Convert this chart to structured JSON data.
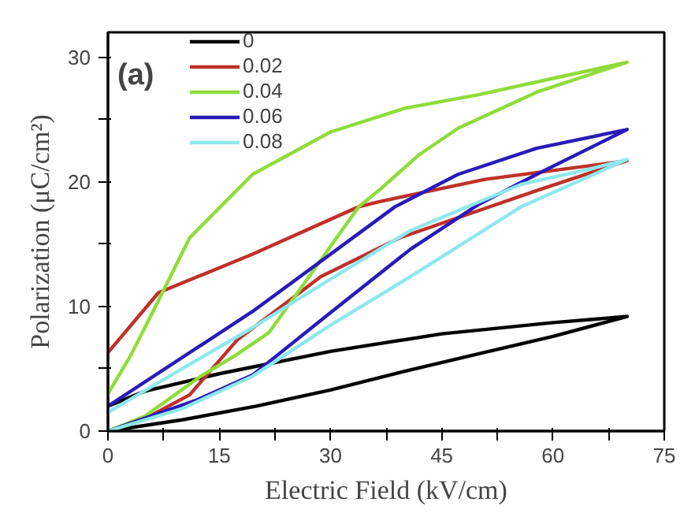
{
  "chart_data": {
    "type": "line",
    "xlabel": "Electric Field (kV/cm)",
    "ylabel": "Polarization (μC/cm²)",
    "annotations": [
      "(a)"
    ],
    "xlim": [
      0,
      75
    ],
    "ylim": [
      0,
      32
    ],
    "xticks": [
      0,
      {
        "value": 7.5,
        "label": null
      },
      15,
      {
        "value": 22.5,
        "label": null
      },
      30,
      {
        "value": 37.5,
        "label": null
      },
      45,
      {
        "value": 52.5,
        "label": null
      },
      60,
      {
        "value": 67.5,
        "label": null
      },
      75
    ],
    "yticks": [
      0,
      {
        "value": 5,
        "label": null
      },
      10,
      {
        "value": 15,
        "label": null
      },
      20,
      {
        "value": 25,
        "label": null
      },
      30
    ],
    "grid": false,
    "legend": "top left",
    "marker": "none",
    "line_style": "solid",
    "series": [
      {
        "name": "0",
        "color": "#000000",
        "x": [
          0,
          10,
          20,
          30,
          40,
          50,
          60,
          70,
          60,
          45,
          30,
          15,
          5,
          0
        ],
        "values": [
          0,
          0.9,
          2.0,
          3.3,
          4.8,
          6.2,
          7.6,
          9.2,
          8.7,
          7.8,
          6.4,
          4.6,
          3.2,
          2.0
        ]
      },
      {
        "name": "0.02",
        "color": "#c0302a",
        "x": [
          0,
          5,
          11,
          17.4,
          28.7,
          39.3,
          57.8,
          70,
          66.3,
          50.8,
          36.5,
          33.8,
          19.5,
          6.8,
          0
        ],
        "values": [
          0,
          1.0,
          2.9,
          7.3,
          12.4,
          15.5,
          19.3,
          21.7,
          21.4,
          20.2,
          18.4,
          18.0,
          14.2,
          11.1,
          6.3
        ]
      },
      {
        "name": "0.04",
        "color": "#8fdc3a",
        "x": [
          0,
          5,
          12.5,
          17,
          21.7,
          27,
          33.8,
          36.5,
          42,
          47.2,
          57.8,
          70,
          60,
          50,
          40,
          30,
          19.5,
          11,
          6,
          3,
          0
        ],
        "values": [
          0,
          1.2,
          4.4,
          6.0,
          7.9,
          12.3,
          18.0,
          19.3,
          22.2,
          24.3,
          27.2,
          29.6,
          28.3,
          27.0,
          25.9,
          24.0,
          20.6,
          15.5,
          9.5,
          6.0,
          3.0
        ]
      },
      {
        "name": "0.06",
        "color": "#2a1ab8",
        "x": [
          0,
          12,
          19.5,
          30,
          40.8,
          50,
          57.8,
          70,
          57.8,
          47.2,
          38.7,
          19.5,
          0
        ],
        "values": [
          0,
          2.5,
          4.5,
          9.5,
          14.6,
          18.2,
          20.6,
          24.2,
          22.7,
          20.6,
          18.0,
          9.6,
          2.0
        ]
      },
      {
        "name": "0.08",
        "color": "#8ee8ee",
        "x": [
          0,
          10,
          19.5,
          30,
          40.8,
          55.7,
          70,
          64.8,
          55.7,
          40.8,
          30,
          19.5,
          10,
          0
        ],
        "values": [
          0,
          1.8,
          4.4,
          8.5,
          12.4,
          18.0,
          21.8,
          21.0,
          19.8,
          16.1,
          12.2,
          8.3,
          5.0,
          1.5
        ]
      }
    ]
  }
}
